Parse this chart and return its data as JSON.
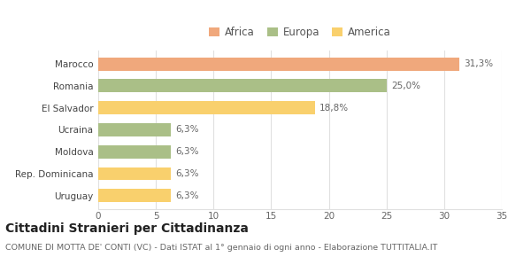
{
  "categories": [
    "Uruguay",
    "Rep. Dominicana",
    "Moldova",
    "Ucraina",
    "El Salvador",
    "Romania",
    "Marocco"
  ],
  "values": [
    6.3,
    6.3,
    6.3,
    6.3,
    18.8,
    25.0,
    31.3
  ],
  "colors": [
    "#F9D06D",
    "#F9D06D",
    "#AABF87",
    "#AABF87",
    "#F9D06D",
    "#AABF87",
    "#F0A87C"
  ],
  "labels": [
    "6,3%",
    "6,3%",
    "6,3%",
    "6,3%",
    "18,8%",
    "25,0%",
    "31,3%"
  ],
  "xlim": [
    0,
    35
  ],
  "xticks": [
    0,
    5,
    10,
    15,
    20,
    25,
    30,
    35
  ],
  "legend_items": [
    {
      "label": "Africa",
      "color": "#F0A87C"
    },
    {
      "label": "Europa",
      "color": "#AABF87"
    },
    {
      "label": "America",
      "color": "#F9D06D"
    }
  ],
  "title": "Cittadini Stranieri per Cittadinanza",
  "subtitle": "COMUNE DI MOTTA DE' CONTI (VC) - Dati ISTAT al 1° gennaio di ogni anno - Elaborazione TUTTITALIA.IT",
  "bar_height": 0.6,
  "background_color": "#FFFFFF",
  "grid_color": "#E0E0E0",
  "label_fontsize": 7.5,
  "tick_fontsize": 7.5,
  "ylabel_fontsize": 7.5,
  "title_fontsize": 10,
  "subtitle_fontsize": 6.8
}
